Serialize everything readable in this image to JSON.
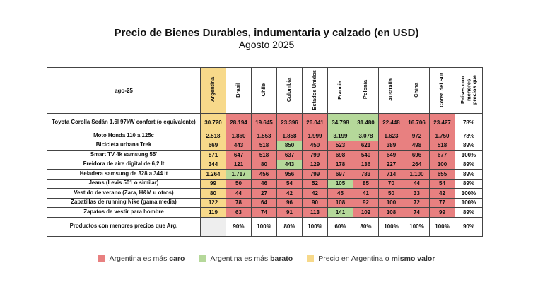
{
  "title": "Precio de Bienes Durables, indumentaria y calzado (en USD)",
  "subtitle": "Agosto 2025",
  "colors": {
    "caro": "#e88080",
    "barato": "#b5d89a",
    "mismo": "#f7d98a",
    "neutral": "#ffffff"
  },
  "chart_data": {
    "type": "table",
    "period_label": "ago-25",
    "columns": [
      "Argentina",
      "Brasil",
      "Chile",
      "Colombia",
      "Estados Unidos",
      "Francia",
      "Polonia",
      "Australia",
      "China",
      "Corea del Sur"
    ],
    "last_column": "Países con menores precios que",
    "rows": [
      {
        "product": "Toyota Corolla Sedán 1.6l 97kW confort (o equivalente)",
        "values": [
          "30.720",
          "28.194",
          "19.645",
          "23.396",
          "26.041",
          "34.798",
          "31.480",
          "22.448",
          "16.706",
          "23.427"
        ],
        "status": [
          "m",
          "c",
          "c",
          "c",
          "c",
          "b",
          "b",
          "c",
          "c",
          "c"
        ],
        "share": "78%"
      },
      {
        "product": "Moto Honda 110 a 125c",
        "values": [
          "2.518",
          "1.860",
          "1.553",
          "1.858",
          "1.999",
          "3.199",
          "3.078",
          "1.623",
          "972",
          "1.750"
        ],
        "status": [
          "m",
          "c",
          "c",
          "c",
          "c",
          "b",
          "b",
          "c",
          "c",
          "c"
        ],
        "share": "78%"
      },
      {
        "product": "Bicicleta urbana Trek",
        "values": [
          "669",
          "443",
          "518",
          "850",
          "450",
          "523",
          "621",
          "389",
          "498",
          "518"
        ],
        "status": [
          "m",
          "c",
          "c",
          "b",
          "c",
          "c",
          "c",
          "c",
          "c",
          "c"
        ],
        "share": "89%"
      },
      {
        "product": "Smart TV 4k samsung 55'",
        "values": [
          "871",
          "647",
          "518",
          "637",
          "799",
          "698",
          "540",
          "649",
          "696",
          "677"
        ],
        "status": [
          "m",
          "c",
          "c",
          "c",
          "c",
          "c",
          "c",
          "c",
          "c",
          "c"
        ],
        "share": "100%"
      },
      {
        "product": "Freidora de aire digital de 6,2 lt",
        "values": [
          "344",
          "121",
          "80",
          "443",
          "129",
          "178",
          "136",
          "227",
          "264",
          "100"
        ],
        "status": [
          "m",
          "c",
          "c",
          "b",
          "c",
          "c",
          "c",
          "c",
          "c",
          "c"
        ],
        "share": "89%"
      },
      {
        "product": "Heladera samsung de 328 a 344 lt",
        "values": [
          "1.264",
          "1.717",
          "456",
          "956",
          "799",
          "697",
          "783",
          "714",
          "1.100",
          "655"
        ],
        "status": [
          "m",
          "b",
          "c",
          "c",
          "c",
          "c",
          "c",
          "c",
          "c",
          "c"
        ],
        "share": "89%"
      },
      {
        "product": "Jeans (Levis 501 o similar)",
        "values": [
          "99",
          "50",
          "46",
          "54",
          "52",
          "105",
          "85",
          "70",
          "44",
          "54"
        ],
        "status": [
          "m",
          "c",
          "c",
          "c",
          "c",
          "b",
          "c",
          "c",
          "c",
          "c"
        ],
        "share": "89%"
      },
      {
        "product": "Vestido de verano (Zara, H&M u otros)",
        "values": [
          "80",
          "44",
          "27",
          "42",
          "42",
          "45",
          "41",
          "50",
          "33",
          "42"
        ],
        "status": [
          "m",
          "c",
          "c",
          "c",
          "c",
          "c",
          "c",
          "c",
          "c",
          "c"
        ],
        "share": "100%"
      },
      {
        "product": "Zapatillas de running Nike (gama media)",
        "values": [
          "122",
          "78",
          "64",
          "96",
          "90",
          "108",
          "92",
          "100",
          "72",
          "77"
        ],
        "status": [
          "m",
          "c",
          "c",
          "c",
          "c",
          "c",
          "c",
          "c",
          "c",
          "c"
        ],
        "share": "100%"
      },
      {
        "product": "Zapatos de vestir para hombre",
        "values": [
          "119",
          "63",
          "74",
          "91",
          "113",
          "141",
          "102",
          "108",
          "74",
          "99"
        ],
        "status": [
          "m",
          "c",
          "c",
          "c",
          "c",
          "b",
          "c",
          "c",
          "c",
          "c"
        ],
        "share": "89%"
      }
    ],
    "footer": {
      "label": "Productos con menores precios que Arg.",
      "values": [
        "",
        "90%",
        "100%",
        "80%",
        "100%",
        "60%",
        "80%",
        "100%",
        "100%",
        "100%"
      ],
      "share": "90%"
    }
  },
  "legend": [
    {
      "key": "caro",
      "prefix": "Argentina es más ",
      "bold": "caro",
      "suffix": ""
    },
    {
      "key": "barato",
      "prefix": "Argentina es más ",
      "bold": "barato",
      "suffix": ""
    },
    {
      "key": "mismo",
      "prefix": "Precio en Argentina o ",
      "bold": "mismo valor",
      "suffix": ""
    }
  ]
}
